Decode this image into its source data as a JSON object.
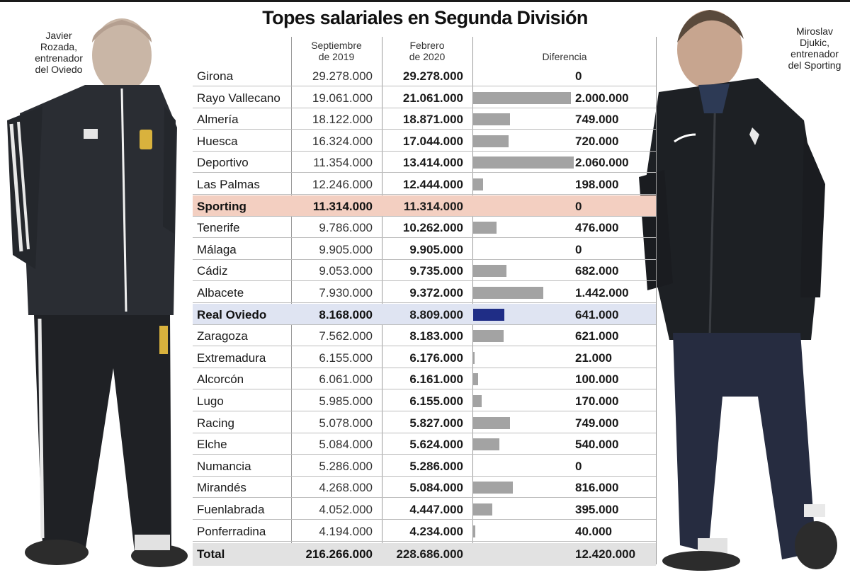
{
  "title": "Topes salariales en Segunda División",
  "captions": {
    "left": [
      "Javier",
      "Rozada,",
      "entrenador",
      "del Oviedo"
    ],
    "right": [
      "Miroslav",
      "Djukic,",
      "entrenador",
      "del Sporting"
    ]
  },
  "columns": {
    "sep": [
      "Septiembre",
      "de 2019"
    ],
    "feb": [
      "Febrero",
      "de 2020"
    ],
    "diff": "Diferencia"
  },
  "colors": {
    "bar": "#a3a3a3",
    "accent_bar": "#1f2d86",
    "sporting_row": "#f3cfc1",
    "oviedo_row": "#dfe4f2",
    "total_row": "#e2e2e2"
  },
  "chart_data": {
    "type": "table",
    "title": "Topes salariales en Segunda División",
    "headers": [
      "",
      "Septiembre de 2019",
      "Febrero de 2020",
      "Diferencia"
    ],
    "diff_bar_max": 2060000,
    "rows": [
      {
        "team": "Girona",
        "sep": "29.278.000",
        "feb": "29.278.000",
        "diff": "0",
        "diff_value": 0,
        "highlight": ""
      },
      {
        "team": "Rayo Vallecano",
        "sep": "19.061.000",
        "feb": "21.061.000",
        "diff": "2.000.000",
        "diff_value": 2000000,
        "highlight": ""
      },
      {
        "team": "Almería",
        "sep": "18.122.000",
        "feb": "18.871.000",
        "diff": "749.000",
        "diff_value": 749000,
        "highlight": ""
      },
      {
        "team": "Huesca",
        "sep": "16.324.000",
        "feb": "17.044.000",
        "diff": "720.000",
        "diff_value": 720000,
        "highlight": ""
      },
      {
        "team": "Deportivo",
        "sep": "11.354.000",
        "feb": "13.414.000",
        "diff": "2.060.000",
        "diff_value": 2060000,
        "highlight": ""
      },
      {
        "team": "Las Palmas",
        "sep": "12.246.000",
        "feb": "12.444.000",
        "diff": "198.000",
        "diff_value": 198000,
        "highlight": ""
      },
      {
        "team": "Sporting",
        "sep": "11.314.000",
        "feb": "11.314.000",
        "diff": "0",
        "diff_value": 0,
        "highlight": "red"
      },
      {
        "team": "Tenerife",
        "sep": "9.786.000",
        "feb": "10.262.000",
        "diff": "476.000",
        "diff_value": 476000,
        "highlight": ""
      },
      {
        "team": "Málaga",
        "sep": "9.905.000",
        "feb": "9.905.000",
        "diff": "0",
        "diff_value": 0,
        "highlight": ""
      },
      {
        "team": "Cádiz",
        "sep": "9.053.000",
        "feb": "9.735.000",
        "diff": "682.000",
        "diff_value": 682000,
        "highlight": ""
      },
      {
        "team": "Albacete",
        "sep": "7.930.000",
        "feb": "9.372.000",
        "diff": "1.442.000",
        "diff_value": 1442000,
        "highlight": ""
      },
      {
        "team": "Real Oviedo",
        "sep": "8.168.000",
        "feb": "8.809.000",
        "diff": "641.000",
        "diff_value": 641000,
        "highlight": "blue"
      },
      {
        "team": "Zaragoza",
        "sep": "7.562.000",
        "feb": "8.183.000",
        "diff": "621.000",
        "diff_value": 621000,
        "highlight": ""
      },
      {
        "team": "Extremadura",
        "sep": "6.155.000",
        "feb": "6.176.000",
        "diff": "21.000",
        "diff_value": 21000,
        "highlight": ""
      },
      {
        "team": "Alcorcón",
        "sep": "6.061.000",
        "feb": "6.161.000",
        "diff": "100.000",
        "diff_value": 100000,
        "highlight": ""
      },
      {
        "team": "Lugo",
        "sep": "5.985.000",
        "feb": "6.155.000",
        "diff": "170.000",
        "diff_value": 170000,
        "highlight": ""
      },
      {
        "team": "Racing",
        "sep": "5.078.000",
        "feb": "5.827.000",
        "diff": "749.000",
        "diff_value": 749000,
        "highlight": ""
      },
      {
        "team": "Elche",
        "sep": "5.084.000",
        "feb": "5.624.000",
        "diff": "540.000",
        "diff_value": 540000,
        "highlight": ""
      },
      {
        "team": "Numancia",
        "sep": "5.286.000",
        "feb": "5.286.000",
        "diff": "0",
        "diff_value": 0,
        "highlight": ""
      },
      {
        "team": "Mirandés",
        "sep": "4.268.000",
        "feb": "5.084.000",
        "diff": "816.000",
        "diff_value": 816000,
        "highlight": ""
      },
      {
        "team": "Fuenlabrada",
        "sep": "4.052.000",
        "feb": "4.447.000",
        "diff": "395.000",
        "diff_value": 395000,
        "highlight": ""
      },
      {
        "team": "Ponferradina",
        "sep": "4.194.000",
        "feb": "4.234.000",
        "diff": "40.000",
        "diff_value": 40000,
        "highlight": ""
      }
    ],
    "total": {
      "team": "Total",
      "sep": "216.266.000",
      "feb": "228.686.000",
      "diff": "12.420.000"
    }
  }
}
